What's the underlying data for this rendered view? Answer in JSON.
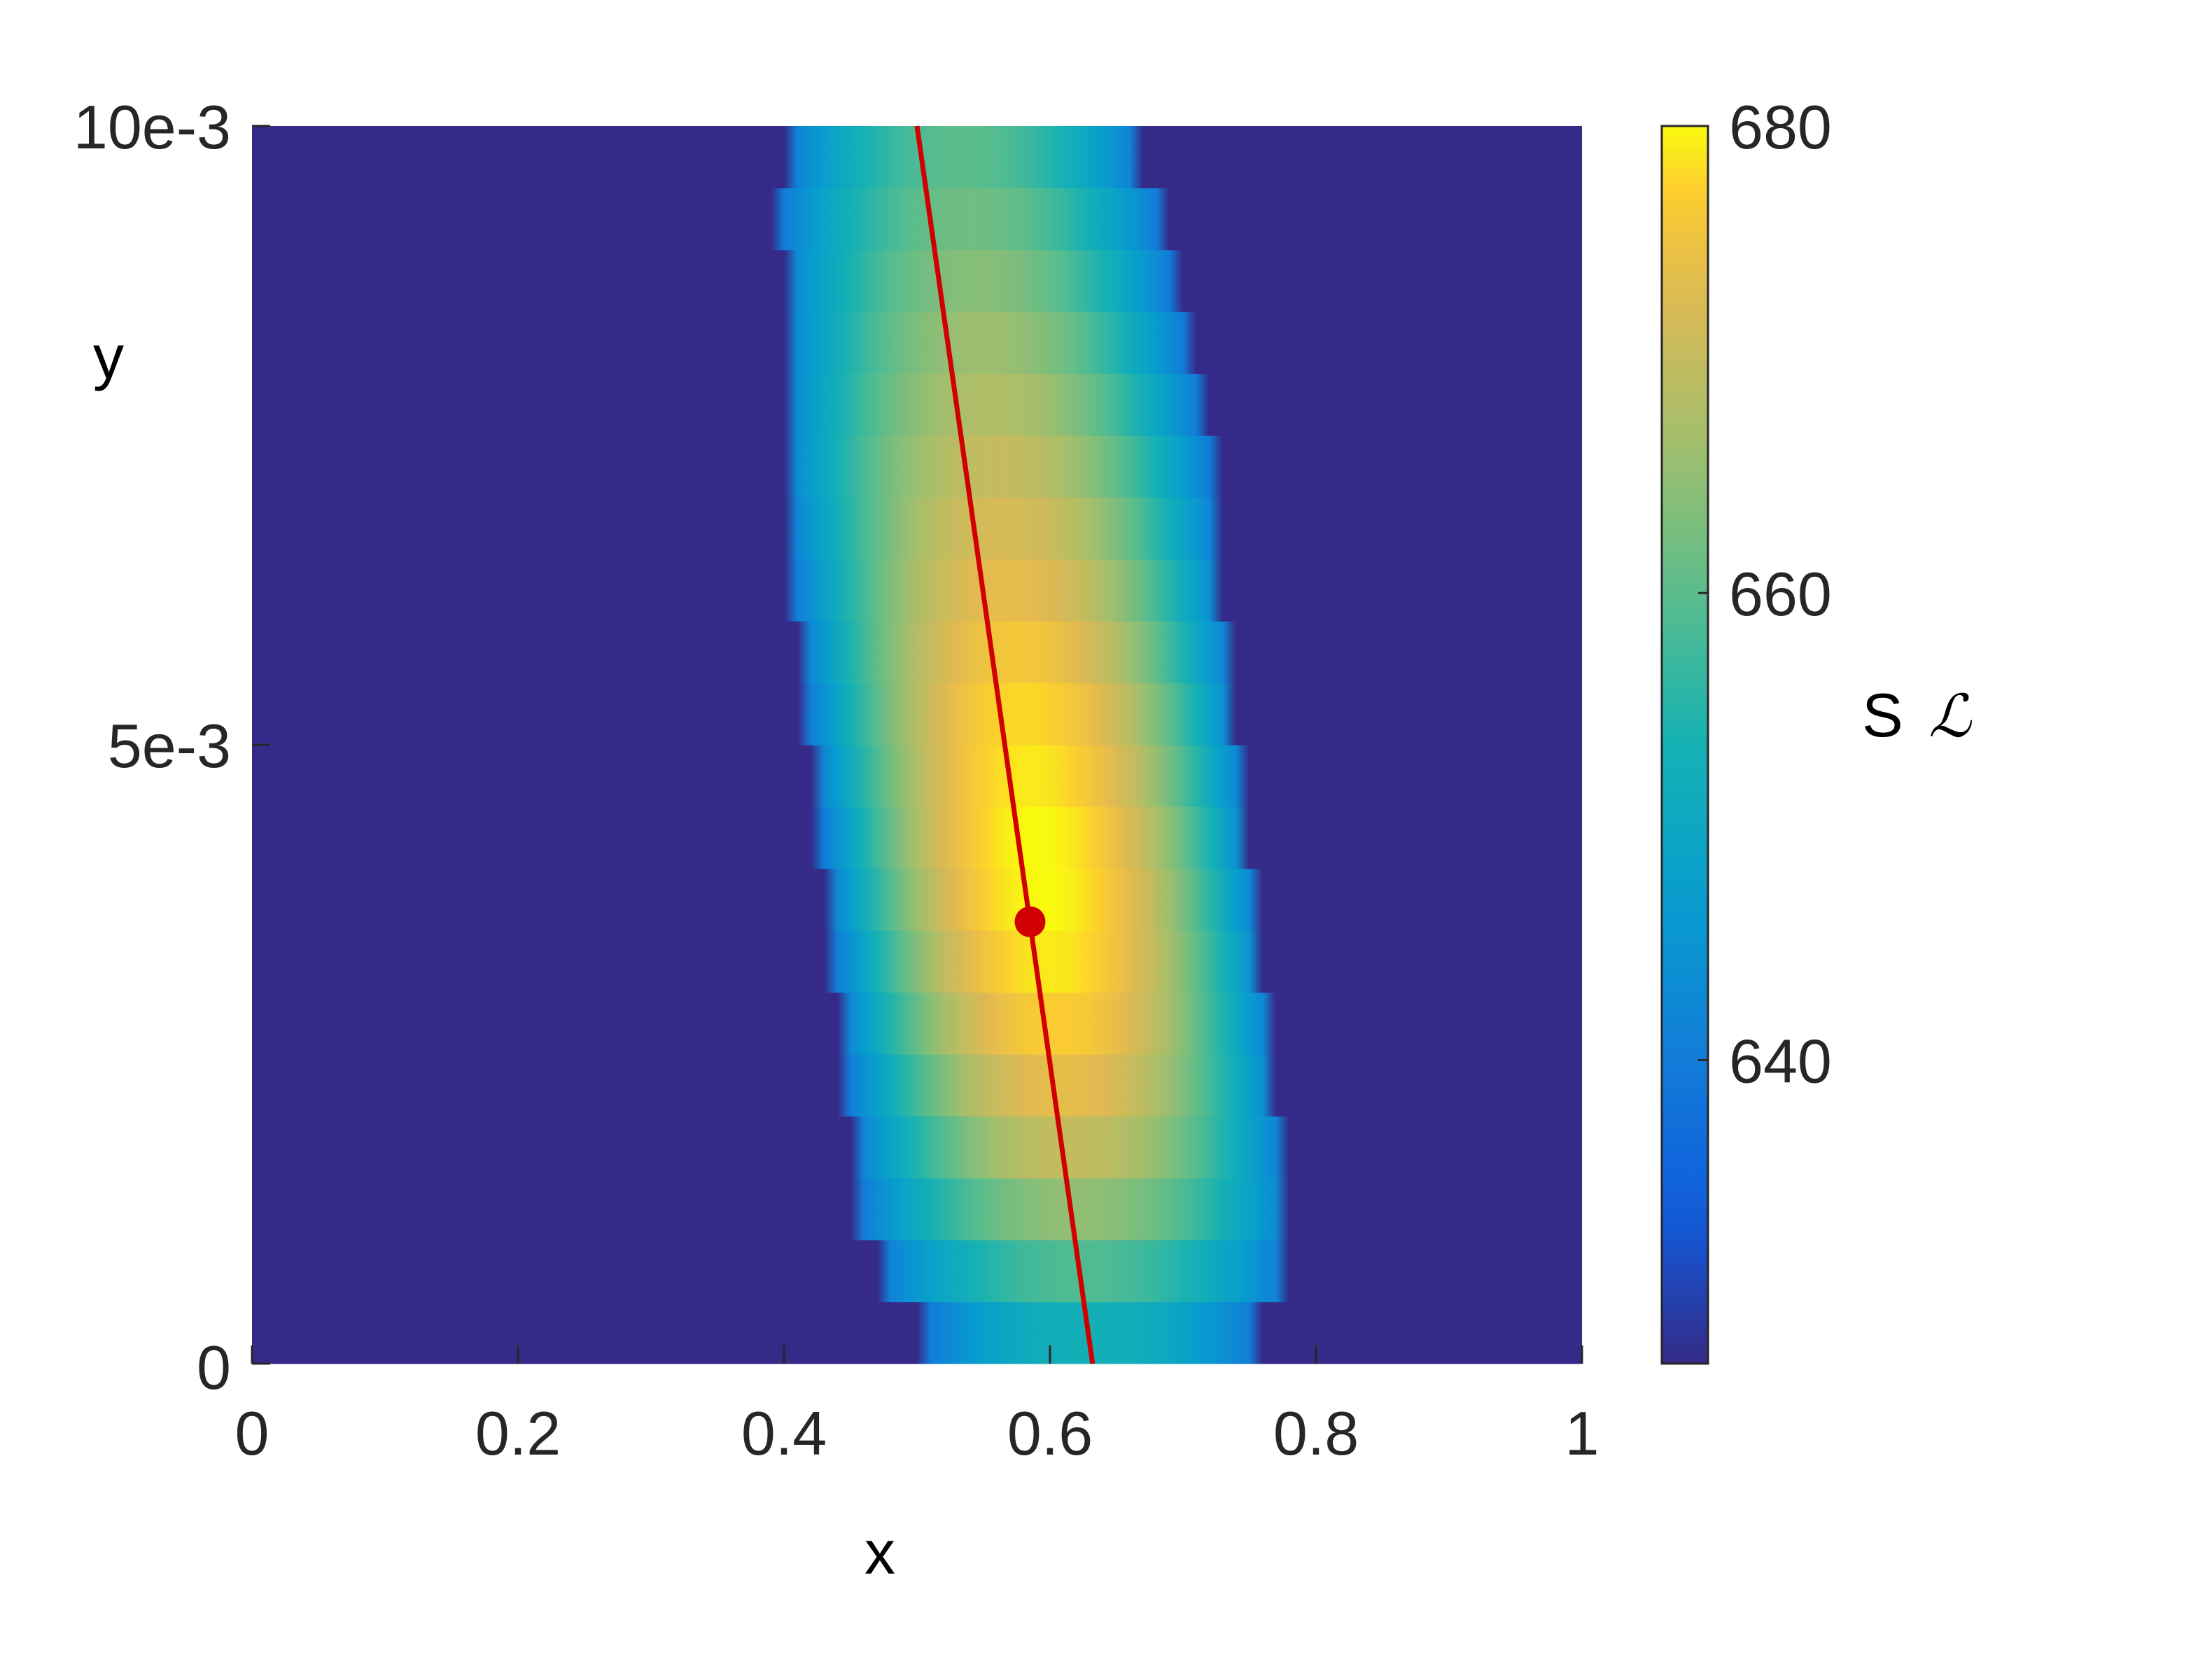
{
  "chart_data": {
    "type": "heatmap",
    "title": "",
    "xlabel": "x",
    "ylabel": "y",
    "xlim": [
      0,
      1
    ],
    "ylim": [
      0,
      0.01
    ],
    "x_ticks": [
      0,
      0.2,
      0.4,
      0.6,
      0.8,
      1
    ],
    "x_tick_labels": [
      "0",
      "0.2",
      "0.4",
      "0.6",
      "0.8",
      "1"
    ],
    "y_ticks": [
      0,
      0.005,
      0.01
    ],
    "y_tick_labels": [
      "0",
      "5e-3",
      "10e-3"
    ],
    "colorbar": {
      "label_text": "S",
      "label_symbol": "ℒ",
      "range": [
        627,
        680
      ],
      "ticks": [
        640,
        660,
        680
      ],
      "tick_labels": [
        "640",
        "660",
        "680"
      ],
      "colormap": "parula"
    },
    "field": {
      "rows": 20,
      "x_samples": 101,
      "background_value": 627,
      "edge_value": 640,
      "peak_value": 680,
      "band_center_x": [
        0.63,
        0.625,
        0.62,
        0.615,
        0.61,
        0.605,
        0.6,
        0.595,
        0.59,
        0.585,
        0.58,
        0.575,
        0.57,
        0.565,
        0.56,
        0.555,
        0.55,
        0.545,
        0.54,
        0.535
      ],
      "band_half_width": [
        0.12,
        0.15,
        0.16,
        0.16,
        0.16,
        0.16,
        0.16,
        0.16,
        0.16,
        0.16,
        0.16,
        0.16,
        0.16,
        0.16,
        0.16,
        0.155,
        0.15,
        0.145,
        0.14,
        0.13
      ],
      "band_peak": [
        653,
        659,
        665,
        670,
        674,
        677,
        679,
        680,
        680,
        679,
        678,
        676,
        674,
        672,
        670,
        668,
        666,
        664,
        662,
        660
      ]
    },
    "series": [
      {
        "type": "line",
        "color": "#d10000",
        "x": [
          0.632,
          0.5
        ],
        "y": [
          0,
          0.01
        ]
      }
    ],
    "marker": {
      "x": 0.585,
      "y": 0.00357,
      "color": "#d10000"
    },
    "grid": false,
    "legend": "none"
  }
}
